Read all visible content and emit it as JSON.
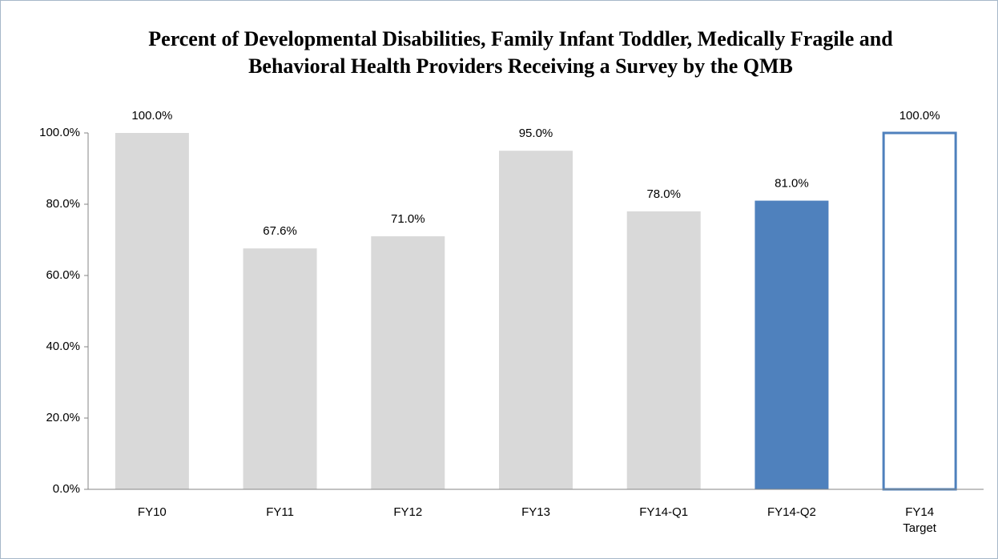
{
  "chart_data": {
    "type": "bar",
    "title": "Percent of Developmental Disabilities, Family Infant Toddler, Medically Fragile and Behavioral Health Providers Receiving a Survey by the QMB",
    "categories": [
      "FY10",
      "FY11",
      "FY12",
      "FY13",
      "FY14-Q1",
      "FY14-Q2",
      "FY14 Target"
    ],
    "values": [
      100.0,
      67.6,
      71.0,
      95.0,
      78.0,
      81.0,
      100.0
    ],
    "value_labels": [
      "100.0%",
      "67.6%",
      "71.0%",
      "95.0%",
      "78.0%",
      "81.0%",
      "100.0%"
    ],
    "colors": [
      "#d9d9d9",
      "#d9d9d9",
      "#d9d9d9",
      "#d9d9d9",
      "#d9d9d9",
      "#4f81bd",
      "#4f81bd"
    ],
    "bar_styles": [
      "fill",
      "fill",
      "fill",
      "fill",
      "fill",
      "fill",
      "outline"
    ],
    "ylim": [
      0,
      100
    ],
    "yticks": [
      {
        "value": 0,
        "label": "0.0%"
      },
      {
        "value": 20,
        "label": "20.0%"
      },
      {
        "value": 40,
        "label": "40.0%"
      },
      {
        "value": 60,
        "label": "60.0%"
      },
      {
        "value": 80,
        "label": "80.0%"
      },
      {
        "value": 100,
        "label": "100.0%"
      }
    ],
    "grid": false
  }
}
